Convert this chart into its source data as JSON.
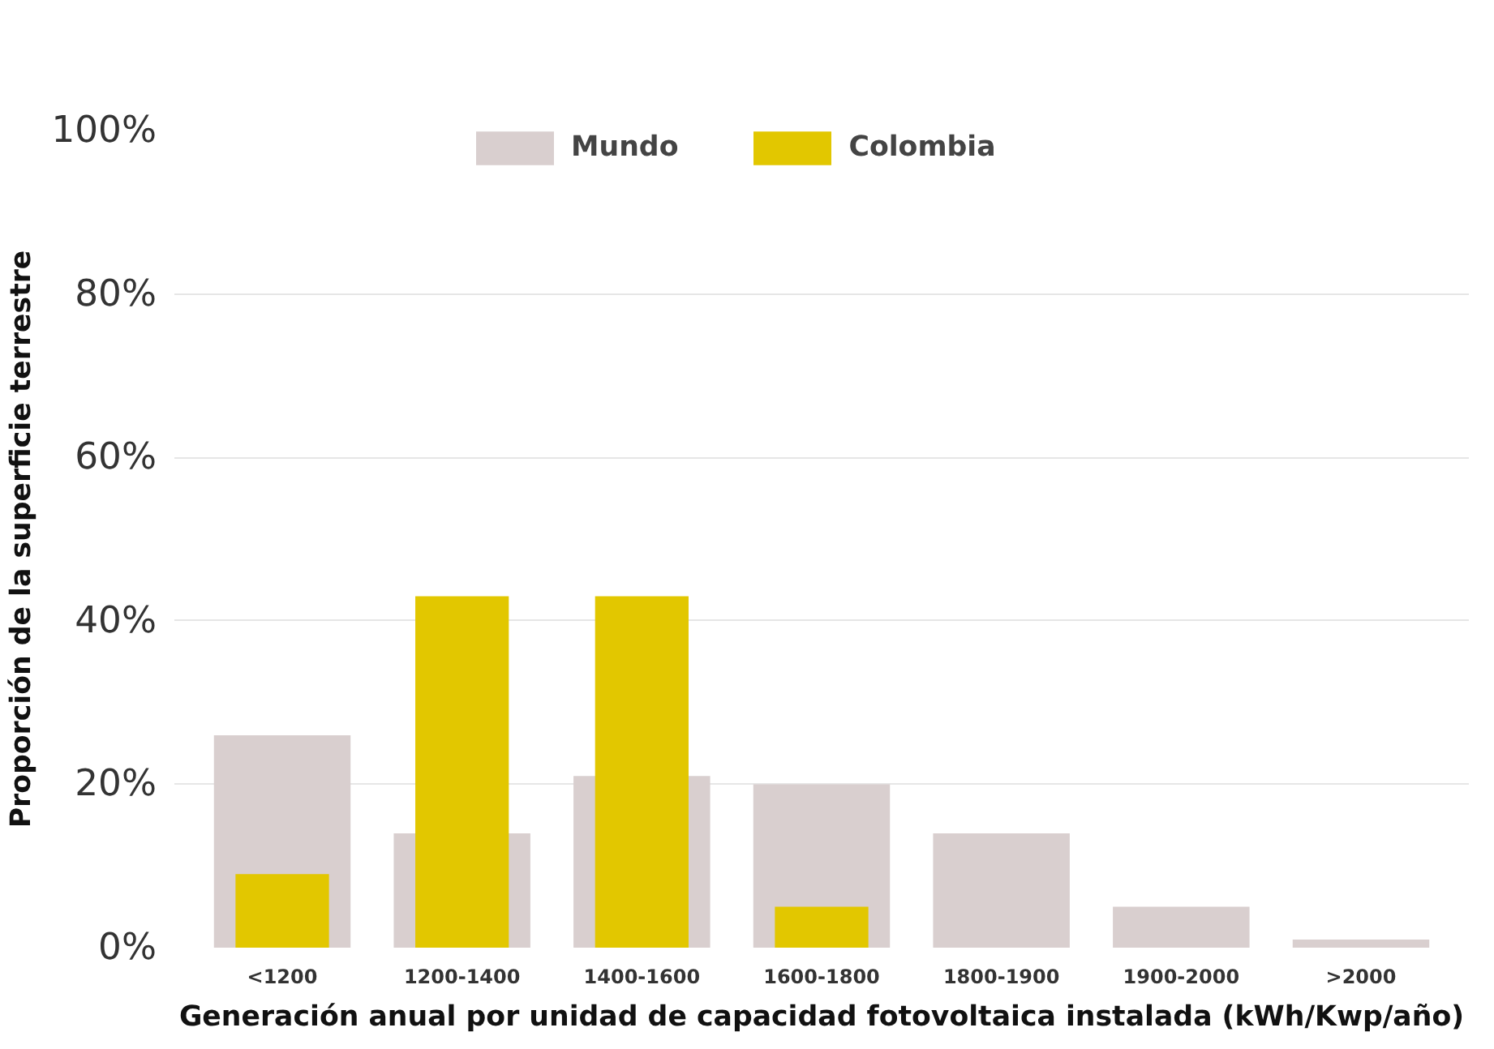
{
  "chart_data": {
    "type": "bar",
    "xlabel": "Generación anual por unidad de capacidad fotovoltaica instalada (kWh/Kwp/año)",
    "ylabel": "Proporción de la superficie terrestre",
    "categories": [
      "<1200",
      "1200-1400",
      "1400-1600",
      "1600-1800",
      "1800-1900",
      "1900-2000",
      ">2000"
    ],
    "series": [
      {
        "name": "Mundo",
        "color": "#d9cfcf",
        "values": [
          26,
          14,
          21,
          20,
          14,
          5,
          1
        ]
      },
      {
        "name": "Colombia",
        "color": "#e2c700",
        "values": [
          9,
          43,
          43,
          5,
          null,
          null,
          null
        ]
      }
    ],
    "ylim": [
      0,
      100
    ],
    "yticks": [
      {
        "value": 0,
        "label": "0%"
      },
      {
        "value": 20,
        "label": "20%"
      },
      {
        "value": 40,
        "label": "40%"
      },
      {
        "value": 60,
        "label": "60%"
      },
      {
        "value": 80,
        "label": "80%"
      },
      {
        "value": 100,
        "label": "100%"
      }
    ],
    "grid": "y",
    "legend": "top"
  }
}
